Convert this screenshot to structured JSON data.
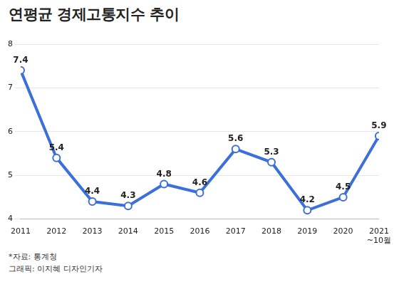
{
  "chart_data": {
    "type": "line",
    "title": "연평균 경제고통지수 추이",
    "categories": [
      "2011",
      "2012",
      "2013",
      "2014",
      "2015",
      "2016",
      "2017",
      "2018",
      "2019",
      "2020",
      "2021\n~10월"
    ],
    "values": [
      7.4,
      5.4,
      4.4,
      4.3,
      4.8,
      4.6,
      5.6,
      5.3,
      4.2,
      4.5,
      5.9
    ],
    "color": "#3b6fd9",
    "marker": "circle",
    "line_style": "solid",
    "ylim": [
      4,
      8
    ],
    "yticks": [
      4,
      5,
      6,
      7,
      8
    ],
    "grid": true,
    "data_labels": true,
    "annotations": [
      "*자료: 통계청",
      "그래픽: 이지혜 디자인기자"
    ]
  }
}
